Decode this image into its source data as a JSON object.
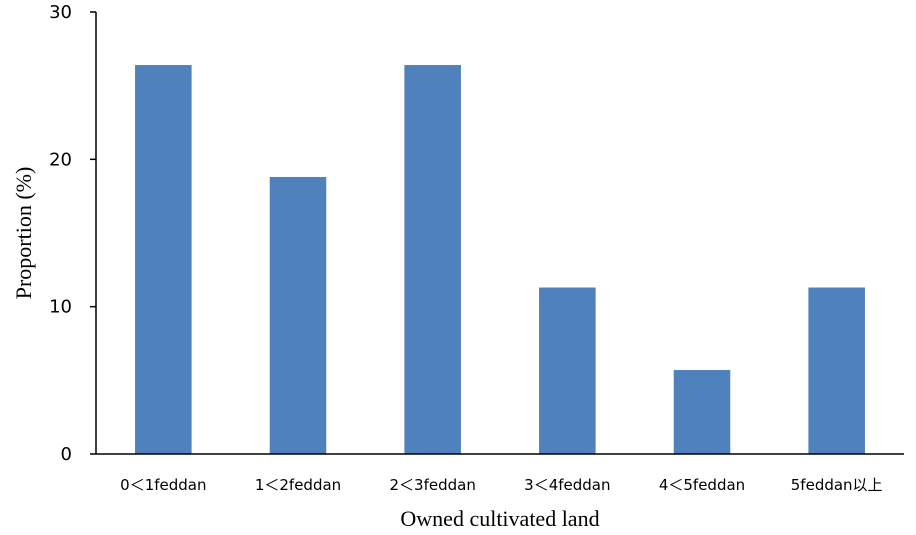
{
  "chart_data": {
    "type": "bar",
    "categories": [
      "0＜1feddan",
      "1＜2feddan",
      "2＜3feddan",
      "3＜4feddan",
      "4＜5feddan",
      "5feddan以上"
    ],
    "values": [
      26.4,
      18.8,
      26.4,
      11.3,
      5.7,
      11.3
    ],
    "xlabel": "Owned cultivated land",
    "ylabel": "Proportion (%)",
    "ylim": [
      0,
      30
    ],
    "yticks": [
      0,
      10,
      20,
      30
    ],
    "grid": false,
    "bar_color": "#4f81bd"
  }
}
